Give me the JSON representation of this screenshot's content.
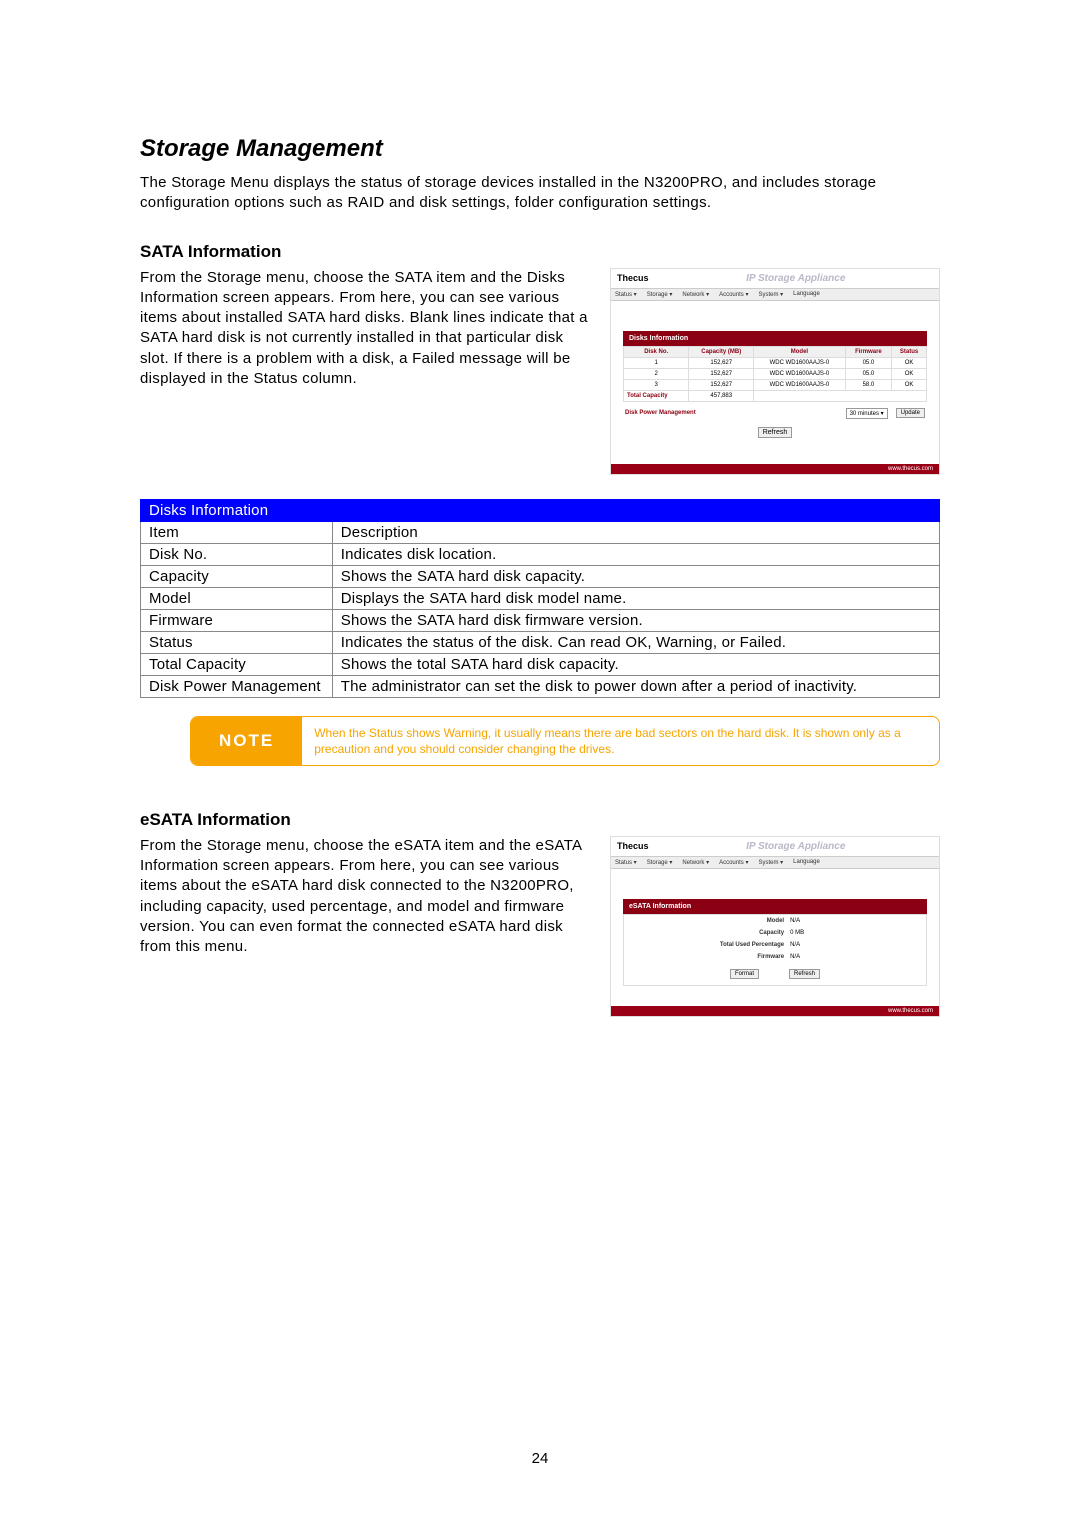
{
  "page_number": "24",
  "heading_main": "Storage Management",
  "intro_para": "The Storage Menu displays the status of storage devices installed in the N3200PRO, and includes storage configuration options such as RAID and disk settings, folder configuration settings.",
  "sata": {
    "heading": "SATA Information",
    "para": "From the Storage menu, choose the SATA item and the Disks Information screen appears. From here, you can see various items about installed SATA hard disks. Blank lines indicate that a SATA hard disk is not currently installed in that particular disk slot. If there is a problem with a disk, a Failed message will be displayed in the Status column."
  },
  "mockup": {
    "brand": "Thecus",
    "title": "IP Storage Appliance",
    "nav": [
      "Status ▾",
      "Storage ▾",
      "Network ▾",
      "Accounts ▾",
      "System ▾",
      "Language"
    ],
    "panel_title": "Disks Information",
    "cols": [
      "Disk No.",
      "Capacity (MB)",
      "Model",
      "Firmware",
      "Status"
    ],
    "rows": [
      [
        "1",
        "152,627",
        "WDC WD1600AAJS-0",
        "05.0",
        "OK"
      ],
      [
        "2",
        "152,627",
        "WDC WD1600AAJS-0",
        "05.0",
        "OK"
      ],
      [
        "3",
        "152,627",
        "WDC WD1600AAJS-0",
        "58.0",
        "OK"
      ]
    ],
    "total_label": "Total Capacity",
    "total_value": "457,883",
    "dpm_label": "Disk Power Management",
    "dpm_value": "30 minutes",
    "update": "Update",
    "refresh": "Refresh",
    "footer": "www.thecus.com"
  },
  "desc_table": {
    "header": "Disks Information",
    "c1": "Item",
    "c2": "Description",
    "rows": [
      [
        "Disk No.",
        "Indicates disk location."
      ],
      [
        "Capacity",
        "Shows the SATA hard disk capacity."
      ],
      [
        "Model",
        "Displays the SATA hard disk model name."
      ],
      [
        "Firmware",
        "Shows the SATA hard disk firmware version."
      ],
      [
        "Status",
        "Indicates the status of the disk. Can read OK, Warning, or Failed."
      ],
      [
        "Total Capacity",
        "Shows the total SATA hard disk capacity."
      ],
      [
        "Disk Power Management",
        "The administrator can set the disk to power down after a period of inactivity."
      ]
    ]
  },
  "note": {
    "label": "NOTE",
    "text": "When the Status shows Warning, it usually means there are bad sectors on the hard disk. It is shown only as a precaution and you should consider changing the drives."
  },
  "esata": {
    "heading": "eSATA Information",
    "para": "From the Storage menu, choose the eSATA item and the eSATA Information screen appears. From here, you can see various items about the eSATA hard disk connected to the N3200PRO, including capacity, used percentage, and model and firmware version. You can even format the connected eSATA hard disk from this menu.",
    "panel_title": "eSATA Information",
    "fields": [
      [
        "Model",
        "N/A"
      ],
      [
        "Capacity",
        "0  MB"
      ],
      [
        "Total Used Percentage",
        "N/A"
      ],
      [
        "Firmware",
        "N/A"
      ]
    ],
    "format": "Format",
    "refresh": "Refresh"
  }
}
